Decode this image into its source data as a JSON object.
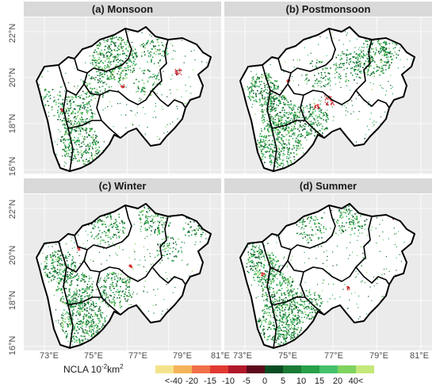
{
  "panels": [
    {
      "title": "(a) Monsoon"
    },
    {
      "title": "(b) Postmonsoon"
    },
    {
      "title": "(c) Winter"
    },
    {
      "title": "(d) Summer"
    }
  ],
  "y_axis_labels": [
    "22°N",
    "20°N",
    "18°N",
    "16°N"
  ],
  "x_axis_labels": [
    "73°E",
    "75°E",
    "77°E",
    "79°E",
    "81°E"
  ],
  "legend": {
    "title_prefix": "NCLA 10",
    "title_exp": "-2",
    "title_suffix": "km",
    "title_exp2": "2",
    "labels": [
      "<-40",
      "-20",
      "-15",
      "-10",
      "-5",
      "0",
      "5",
      "10",
      "15",
      "20",
      "40<"
    ],
    "colors": [
      "#f3e48c",
      "#f5b35a",
      "#f0704a",
      "#e03a32",
      "#b0192a",
      "#5c0a1c",
      "#0b4d23",
      "#1a7a36",
      "#27a04a",
      "#45c06a",
      "#7fd35f",
      "#c4e87a"
    ]
  }
}
